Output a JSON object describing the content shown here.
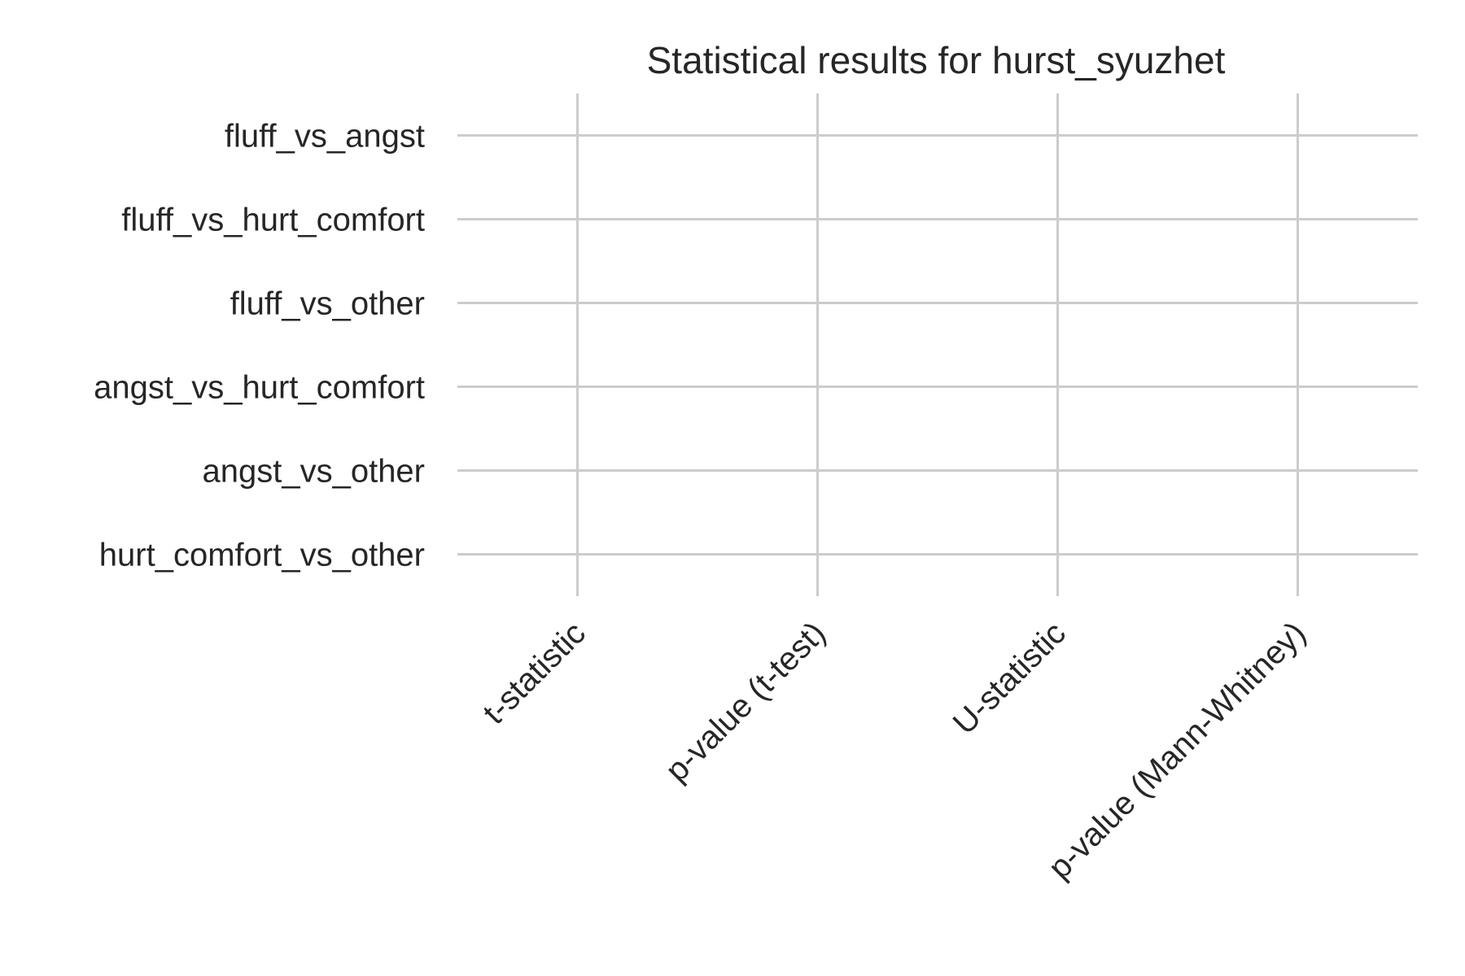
{
  "chart_data": {
    "type": "heatmap",
    "title": "Statistical results for hurst_syuzhet",
    "xlabel": "",
    "ylabel": "",
    "x_categories": [
      "t-statistic",
      "p-value (t-test)",
      "U-statistic",
      "p-value (Mann-Whitney)"
    ],
    "y_categories": [
      "fluff_vs_angst",
      "fluff_vs_hurt_comfort",
      "fluff_vs_other",
      "angst_vs_hurt_comfort",
      "angst_vs_other",
      "hurt_comfort_vs_other"
    ],
    "values": [],
    "grid": true,
    "legend": "none",
    "colors": {
      "grid": "#cccccc",
      "text": "#262626",
      "background": "#ffffff"
    }
  }
}
